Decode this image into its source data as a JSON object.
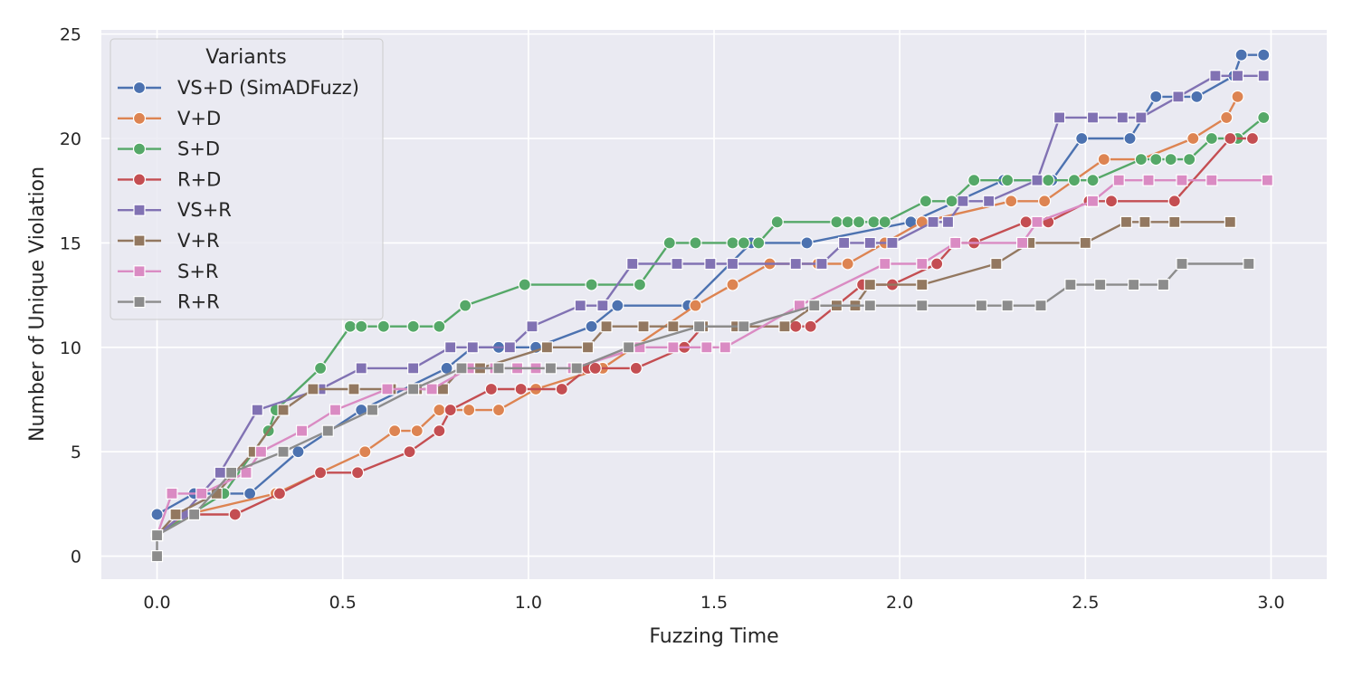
{
  "chart_data": {
    "type": "line",
    "xlabel": "Fuzzing Time",
    "ylabel": "Number of Unique Violation",
    "xlim": [
      -0.15,
      3.15
    ],
    "ylim": [
      -1.1,
      25.2
    ],
    "xticks": [
      0.0,
      0.5,
      1.0,
      1.5,
      2.0,
      2.5,
      3.0
    ],
    "xtick_labels": [
      "0.0",
      "0.5",
      "1.0",
      "1.5",
      "2.0",
      "2.5",
      "3.0"
    ],
    "yticks": [
      0,
      5,
      10,
      15,
      20,
      25
    ],
    "ytick_labels": [
      "0",
      "5",
      "10",
      "15",
      "20",
      "25"
    ],
    "grid": true,
    "background": "#eaeaf2",
    "legend": {
      "title": "Variants",
      "position": "top-left"
    },
    "series": [
      {
        "name": "VS+D (SimADFuzz)",
        "color": "#4c72b0",
        "marker": "circle",
        "x": [
          0.0,
          0.1,
          0.25,
          0.38,
          0.55,
          0.78,
          0.85,
          0.92,
          1.02,
          1.17,
          1.24,
          1.43,
          1.6,
          1.75,
          2.03,
          2.28,
          2.41,
          2.49,
          2.62,
          2.69,
          2.8,
          2.9,
          2.92,
          2.98
        ],
        "y": [
          2,
          3,
          3,
          5,
          7,
          9,
          10,
          10,
          10,
          11,
          12,
          12,
          15,
          15,
          16,
          18,
          18,
          20,
          20,
          22,
          22,
          23,
          24,
          24
        ]
      },
      {
        "name": "V+D",
        "color": "#dd8452",
        "marker": "circle",
        "x": [
          0.0,
          0.08,
          0.32,
          0.56,
          0.64,
          0.7,
          0.76,
          0.84,
          0.92,
          1.02,
          1.2,
          1.45,
          1.55,
          1.65,
          1.78,
          1.86,
          1.96,
          2.06,
          2.3,
          2.39,
          2.55,
          2.65,
          2.79,
          2.88,
          2.91
        ],
        "y": [
          1,
          2,
          3,
          5,
          6,
          6,
          7,
          7,
          7,
          8,
          9,
          12,
          13,
          14,
          14,
          14,
          15,
          16,
          17,
          17,
          19,
          19,
          20,
          21,
          22
        ]
      },
      {
        "name": "S+D",
        "color": "#55a868",
        "marker": "circle",
        "x": [
          0.0,
          0.18,
          0.3,
          0.32,
          0.44,
          0.52,
          0.55,
          0.61,
          0.69,
          0.76,
          0.83,
          0.99,
          1.17,
          1.3,
          1.38,
          1.45,
          1.55,
          1.58,
          1.62,
          1.67,
          1.83,
          1.86,
          1.89,
          1.93,
          1.96,
          2.07,
          2.14,
          2.2,
          2.29,
          2.4,
          2.47,
          2.52,
          2.65,
          2.69,
          2.73,
          2.78,
          2.84,
          2.91,
          2.98
        ],
        "y": [
          1,
          3,
          6,
          7,
          9,
          11,
          11,
          11,
          11,
          11,
          12,
          13,
          13,
          13,
          15,
          15,
          15,
          15,
          15,
          16,
          16,
          16,
          16,
          16,
          16,
          17,
          17,
          18,
          18,
          18,
          18,
          18,
          19,
          19,
          19,
          19,
          20,
          20,
          21
        ]
      },
      {
        "name": "R+D",
        "color": "#c44e52",
        "marker": "circle",
        "x": [
          0.0,
          0.07,
          0.21,
          0.33,
          0.44,
          0.54,
          0.68,
          0.76,
          0.79,
          0.9,
          0.98,
          1.09,
          1.16,
          1.18,
          1.29,
          1.42,
          1.47,
          1.72,
          1.76,
          1.9,
          1.98,
          2.1,
          2.15,
          2.2,
          2.34,
          2.4,
          2.51,
          2.57,
          2.74,
          2.89,
          2.95
        ],
        "y": [
          1,
          2,
          2,
          3,
          4,
          4,
          5,
          6,
          7,
          8,
          8,
          8,
          9,
          9,
          9,
          10,
          11,
          11,
          11,
          13,
          13,
          14,
          15,
          15,
          16,
          16,
          17,
          17,
          17,
          20,
          20
        ]
      },
      {
        "name": "VS+R",
        "color": "#8172b3",
        "marker": "square",
        "x": [
          0.0,
          0.07,
          0.17,
          0.27,
          0.44,
          0.55,
          0.69,
          0.79,
          0.85,
          0.95,
          1.01,
          1.14,
          1.2,
          1.28,
          1.4,
          1.49,
          1.55,
          1.72,
          1.79,
          1.85,
          1.92,
          1.98,
          2.09,
          2.13,
          2.17,
          2.24,
          2.37,
          2.43,
          2.52,
          2.6,
          2.65,
          2.75,
          2.85,
          2.91,
          2.98
        ],
        "y": [
          1,
          2,
          4,
          7,
          8,
          9,
          9,
          10,
          10,
          10,
          11,
          12,
          12,
          14,
          14,
          14,
          14,
          14,
          14,
          15,
          15,
          15,
          16,
          16,
          17,
          17,
          18,
          21,
          21,
          21,
          21,
          22,
          23,
          23,
          23
        ]
      },
      {
        "name": "V+R",
        "color": "#937860",
        "marker": "square",
        "x": [
          0.0,
          0.05,
          0.16,
          0.26,
          0.34,
          0.42,
          0.53,
          0.63,
          0.7,
          0.77,
          0.82,
          0.87,
          1.05,
          1.16,
          1.21,
          1.31,
          1.39,
          1.47,
          1.56,
          1.69,
          1.77,
          1.83,
          1.88,
          1.92,
          2.06,
          2.26,
          2.35,
          2.5,
          2.61,
          2.66,
          2.74,
          2.89
        ],
        "y": [
          1,
          2,
          3,
          5,
          7,
          8,
          8,
          8,
          8,
          8,
          9,
          9,
          10,
          10,
          11,
          11,
          11,
          11,
          11,
          11,
          12,
          12,
          12,
          13,
          13,
          14,
          15,
          15,
          16,
          16,
          16,
          16
        ]
      },
      {
        "name": "S+R",
        "color": "#da8bc3",
        "marker": "square",
        "x": [
          0.0,
          0.04,
          0.12,
          0.24,
          0.28,
          0.39,
          0.48,
          0.62,
          0.74,
          0.84,
          0.91,
          0.97,
          1.02,
          1.12,
          1.3,
          1.39,
          1.48,
          1.53,
          1.73,
          1.96,
          2.06,
          2.15,
          2.33,
          2.37,
          2.52,
          2.59,
          2.67,
          2.76,
          2.84,
          2.99
        ],
        "y": [
          1,
          3,
          3,
          4,
          5,
          6,
          7,
          8,
          8,
          9,
          9,
          9,
          9,
          9,
          10,
          10,
          10,
          10,
          12,
          14,
          14,
          15,
          15,
          16,
          17,
          18,
          18,
          18,
          18,
          18
        ]
      },
      {
        "name": "R+R",
        "color": "#8c8c8c",
        "marker": "square",
        "x": [
          0.0,
          0.0,
          0.1,
          0.2,
          0.34,
          0.46,
          0.58,
          0.69,
          0.82,
          0.92,
          1.06,
          1.13,
          1.27,
          1.46,
          1.58,
          1.77,
          1.92,
          2.06,
          2.22,
          2.29,
          2.38,
          2.46,
          2.54,
          2.63,
          2.71,
          2.76,
          2.94
        ],
        "y": [
          0,
          1,
          2,
          4,
          5,
          6,
          7,
          8,
          9,
          9,
          9,
          9,
          10,
          11,
          11,
          12,
          12,
          12,
          12,
          12,
          12,
          13,
          13,
          13,
          13,
          14,
          14
        ]
      }
    ]
  }
}
